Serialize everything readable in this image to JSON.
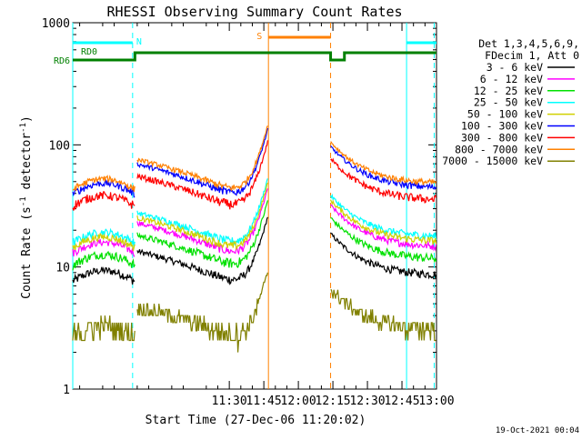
{
  "chart_data": {
    "type": "line",
    "title": "RHESSI Observing Summary Count Rates",
    "xlabel": "Start Time (27-Dec-06 11:20:02)",
    "ylabel_main": "Count Rate (s",
    "ylabel_sup1": "-1",
    "ylabel_mid": " detector",
    "ylabel_sup2": "-1",
    "ylabel_end": ")",
    "yscale": "log",
    "ylim": [
      1,
      1000
    ],
    "xlim_minutes": [
      22,
      180
    ],
    "y_ticks": [
      {
        "value": 1,
        "label": "1"
      },
      {
        "value": 10,
        "label": "10"
      },
      {
        "value": 100,
        "label": "100"
      },
      {
        "value": 1000,
        "label": "1000"
      }
    ],
    "x_ticks": [
      {
        "value": 90,
        "label": "11:30"
      },
      {
        "value": 105,
        "label": "11:45"
      },
      {
        "value": 120,
        "label": "12:00"
      },
      {
        "value": 135,
        "label": "12:15"
      },
      {
        "value": 150,
        "label": "12:30"
      },
      {
        "value": 165,
        "label": "12:45"
      },
      {
        "value": 180,
        "label": "13:00"
      }
    ],
    "legend_header": [
      "Det 1,3,4,5,6,9,",
      "FDecim 1, Att 0"
    ],
    "legend_placement": "right",
    "series": [
      {
        "name": "3 - 6 keV",
        "color": "#000000",
        "base": 8.5,
        "amp": 0.7
      },
      {
        "name": "6 - 12 keV",
        "color": "#ff00ff",
        "base": 14.5,
        "amp": 1.1
      },
      {
        "name": "12 - 25 keV",
        "color": "#00e000",
        "base": 11.5,
        "amp": 1.0
      },
      {
        "name": "25 - 50 keV",
        "color": "#00ffff",
        "base": 17.5,
        "amp": 1.3
      },
      {
        "name": "50 - 100 keV",
        "color": "#d0d000",
        "base": 16,
        "amp": 1.2
      },
      {
        "name": "100 - 300 keV",
        "color": "#0000ff",
        "base": 44,
        "amp": 3
      },
      {
        "name": "300 - 800 keV",
        "color": "#ff0000",
        "base": 35,
        "amp": 3
      },
      {
        "name": "800 - 7000 keV",
        "color": "#ff8000",
        "base": 48,
        "amp": 3
      },
      {
        "name": "7000 - 15000 keV",
        "color": "#808000",
        "base": 3,
        "amp": 0.6
      }
    ],
    "data_segments": [
      [
        22,
        49
      ],
      [
        50,
        107
      ],
      [
        134,
        180
      ]
    ],
    "markers": [
      {
        "label": "N",
        "color": "#00ffff",
        "x0": 22,
        "x1": 48,
        "x2": 167,
        "x3": 180
      },
      {
        "label": "S",
        "color": "#ff8000",
        "x0": 107,
        "x1": 134
      },
      {
        "label": "RD0",
        "color": "#008000",
        "x0": 22,
        "x1": 180
      },
      {
        "label": "RD6",
        "color": "#008000",
        "x0": 22,
        "x1": 180
      }
    ],
    "vlines": [
      {
        "x": 22,
        "color": "#00ffff",
        "style": "solid"
      },
      {
        "x": 48,
        "color": "#00ffff",
        "style": "dashed"
      },
      {
        "x": 107,
        "color": "#ff8000",
        "style": "solid"
      },
      {
        "x": 134,
        "color": "#ff8000",
        "style": "dashed"
      },
      {
        "x": 167,
        "color": "#00ffff",
        "style": "solid"
      },
      {
        "x": 179,
        "color": "#00ffff",
        "style": "dashed"
      }
    ],
    "grid": false
  },
  "footer_timestamp": "19-Oct-2021 00:04"
}
